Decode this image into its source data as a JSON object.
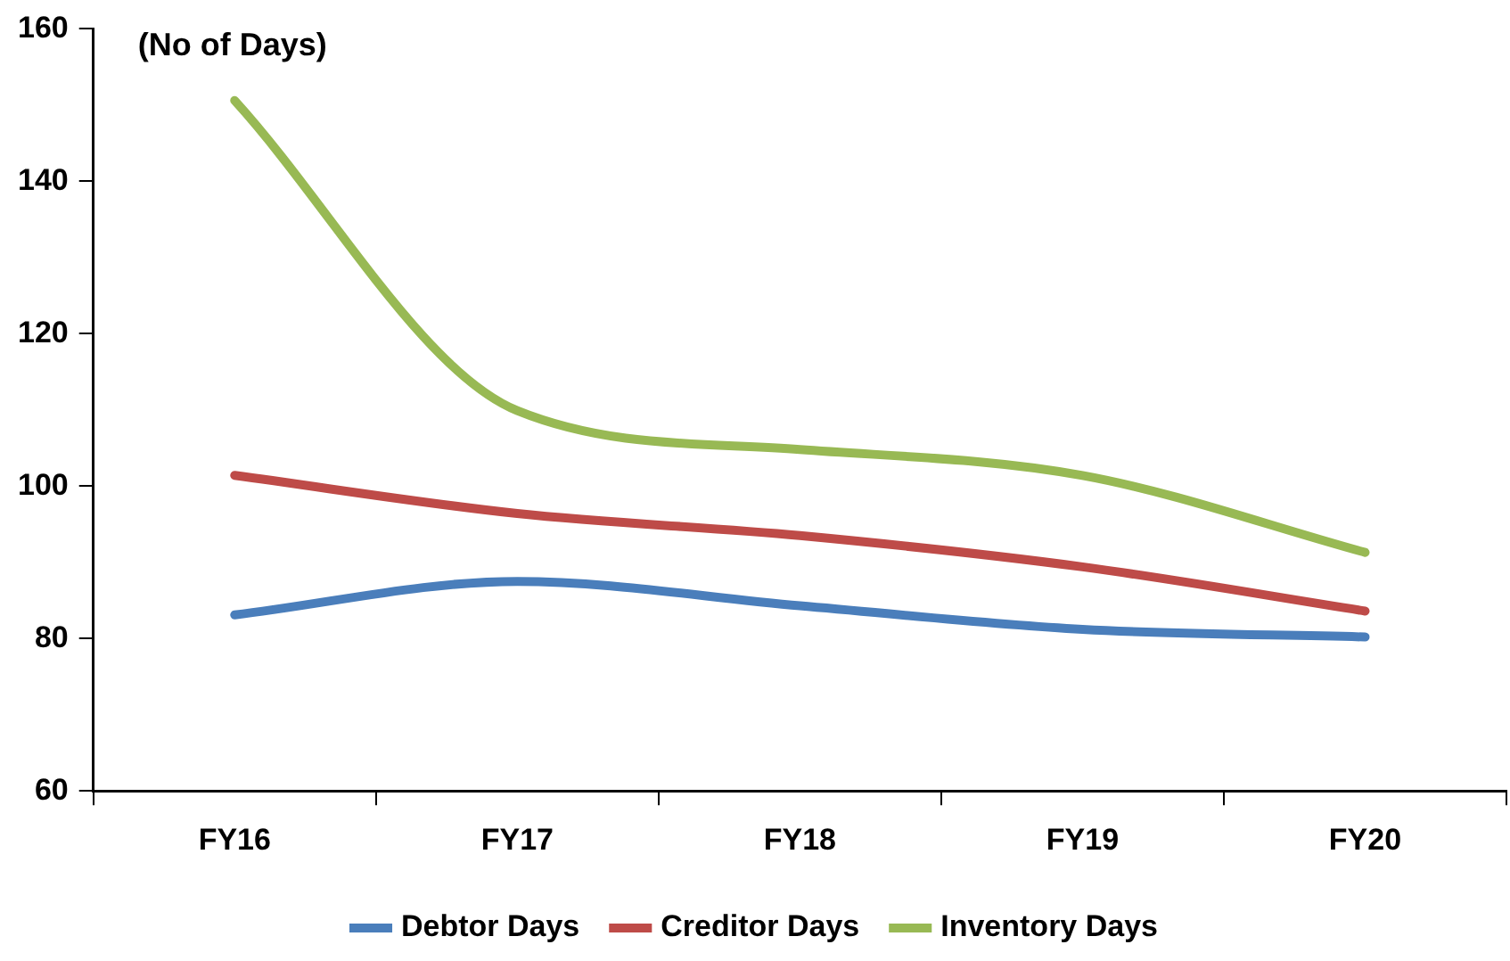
{
  "chart_data": {
    "type": "line",
    "ylabel": "(No of Days)",
    "categories": [
      "FY16",
      "FY17",
      "FY18",
      "FY19",
      "FY20"
    ],
    "series": [
      {
        "name": "Debtor Days",
        "color": "#4a7ebb",
        "values": [
          83.1,
          87.5,
          84.3,
          81.2,
          80.2
        ]
      },
      {
        "name": "Creditor Days",
        "color": "#be4b48",
        "values": [
          101.4,
          96.4,
          93.5,
          89.4,
          83.6
        ]
      },
      {
        "name": "Inventory Days",
        "color": "#98b954",
        "values": [
          150.6,
          109.9,
          104.8,
          101.4,
          91.3
        ]
      }
    ],
    "ylim": [
      60,
      160
    ],
    "yticks": [
      60,
      80,
      100,
      120,
      140,
      160
    ],
    "grid": false,
    "legend": "bottom",
    "marker": "none",
    "line_style": "solid"
  }
}
